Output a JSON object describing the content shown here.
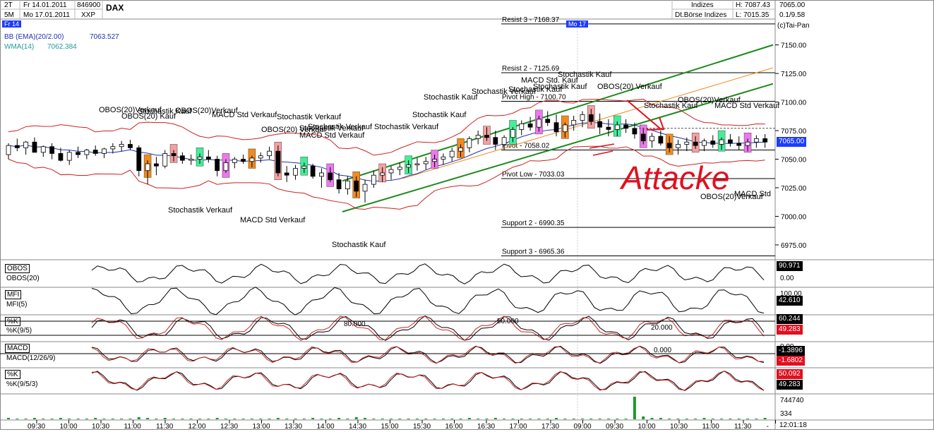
{
  "header": {
    "period_1": "2T",
    "date_1": "Fr 14.01.2011",
    "period_2": "5M",
    "date_2": "Mo 17.01.2011",
    "code": "846900",
    "exchange": "XXP",
    "symbol": "DAX",
    "market_1": "Indizes",
    "market_2": "Dt.Börse Indizes",
    "high_label": "H: 7087.43",
    "low_label": "L: 7015.35",
    "last_value": "7065.00",
    "change": "0.1/9.58",
    "copyright": "(c)Tai-Pan"
  },
  "indicators": {
    "day_flag": "Fr 14",
    "bb_label": "BB (EMA)(20/2.00)",
    "bb_value": "7063.527",
    "wma_label": "WMA(14)",
    "wma_value": "7062.384",
    "day_flag_2": "Mo 17"
  },
  "levels": [
    {
      "label": "Resist 3 - 7168.37",
      "value": 7168.37
    },
    {
      "label": "Resist 2 - 7125.69",
      "value": 7125.69
    },
    {
      "label": "Pivot High - 7100.70",
      "value": 7100.7
    },
    {
      "label": "Pivot - 7058.02",
      "value": 7058.02
    },
    {
      "label": "Pivot Low - 7033.03",
      "value": 7033.03
    },
    {
      "label": "Support 2 - 6990.35",
      "value": 6990.35
    },
    {
      "label": "Support 3 - 6965.36",
      "value": 6965.36
    }
  ],
  "signals": [
    "OBOS(20)Verkauf",
    "OBOS(20) Kauf",
    "OBOS(20)Verkauf",
    "Stochastik Kauf",
    "MACD Std Verkauf",
    "OBOS(20) Verkauf",
    "Stochastik Verkauf",
    "MACD Std Verkauf",
    "Stochastik Verkauf",
    "Stochastik Verkauf",
    "Stochastik Kauf",
    "Stochastik Verkauf",
    "Stochastik Kauf",
    "Stochastik Kauf",
    "Stochastik Verkauf",
    "MACD Std. Kauf",
    "Stochastik Kauf",
    "Stochastik Kauf",
    "OBOS(20) Verkauf",
    "Stochastik Kauf",
    "OBOS(20)Verkauf",
    "MACD Std Verkauf",
    "OBOS(20)Verkauf",
    "MACD Std",
    "Stochastik Verkauf",
    "MACD Std Verkauf",
    "Stochastik Kauf"
  ],
  "handwriting": "Attacke",
  "panels": {
    "obos": {
      "tag": "OBOS",
      "name": "OBOS(20)",
      "value": "90.971",
      "ticks": [
        "0.00"
      ]
    },
    "mfi": {
      "tag": "MFI",
      "name": "MFI(5)",
      "value": "42.610",
      "ticks": [
        "100.00"
      ]
    },
    "stoch": {
      "tag": "%K",
      "name": "%K(9/5)",
      "value_1": "60.244",
      "value_2": "49.283",
      "levels": [
        "80.000",
        "50.000",
        "20.000"
      ]
    },
    "macd": {
      "tag": "MACD",
      "name": "MACD(12/26/9)",
      "value_1": "-1.3896",
      "value_2": "-1.6802",
      "ticks": [
        "0.00"
      ],
      "zero_label": "0.000"
    },
    "slow": {
      "tag": "%K",
      "name": "%K(9/5/3)",
      "value_1": "50.092",
      "value_2": "49.283"
    },
    "volume": {
      "ticks": [
        "744740",
        "334"
      ]
    }
  },
  "time_axis": [
    "09:30",
    "10:00",
    "10:30",
    "11:00",
    "11:30",
    "12:00",
    "12:30",
    "13:00",
    "13:30",
    "14:00",
    "14:30",
    "15:00",
    "15:30",
    "16:00",
    "16:30",
    "17:00",
    "17:30",
    "09:00",
    "09:30",
    "10:00",
    "10:30",
    "11:00",
    "11:30",
    "-"
  ],
  "clock": "12:01:18",
  "colors": {
    "up_candle": "#ffffff",
    "down_candle": "#000000",
    "channel": "#1a8a1a",
    "bollinger": "#cc2222",
    "wma": "#2233aa",
    "highlight_last": "#1e3cff",
    "orange": "#f28a1e",
    "magenta": "#ee77ee",
    "green_box": "#44ee99",
    "pink_box": "#f5a0a0",
    "handwriting": "#e01020"
  },
  "chart_data": {
    "type": "candlestick",
    "title": "DAX",
    "interval": "5M",
    "y_ticks": [
      6975,
      7000,
      7025,
      7050,
      7075,
      7100,
      7125,
      7150
    ],
    "ylim": [
      6962,
      7172
    ],
    "ohlc": [
      [
        7054,
        7064,
        7050,
        7062
      ],
      [
        7062,
        7068,
        7057,
        7060
      ],
      [
        7060,
        7066,
        7054,
        7065
      ],
      [
        7065,
        7069,
        7058,
        7056
      ],
      [
        7056,
        7062,
        7052,
        7061
      ],
      [
        7061,
        7064,
        7050,
        7055
      ],
      [
        7055,
        7060,
        7048,
        7049
      ],
      [
        7049,
        7058,
        7045,
        7056
      ],
      [
        7056,
        7061,
        7051,
        7054
      ],
      [
        7054,
        7059,
        7050,
        7058
      ],
      [
        7058,
        7062,
        7053,
        7055
      ],
      [
        7055,
        7060,
        7051,
        7059
      ],
      [
        7059,
        7064,
        7055,
        7061
      ],
      [
        7061,
        7066,
        7057,
        7063
      ],
      [
        7063,
        7067,
        7058,
        7060
      ],
      [
        7060,
        7062,
        7035,
        7040
      ],
      [
        7040,
        7049,
        7028,
        7046
      ],
      [
        7046,
        7052,
        7036,
        7044
      ],
      [
        7044,
        7058,
        7042,
        7055
      ],
      [
        7055,
        7058,
        7048,
        7053
      ],
      [
        7053,
        7056,
        7046,
        7049
      ],
      [
        7049,
        7054,
        7045,
        7050
      ],
      [
        7050,
        7055,
        7046,
        7052
      ],
      [
        7052,
        7058,
        7047,
        7050
      ],
      [
        7050,
        7053,
        7035,
        7040
      ],
      [
        7040,
        7050,
        7038,
        7047
      ],
      [
        7047,
        7052,
        7042,
        7050
      ],
      [
        7050,
        7054,
        7046,
        7048
      ],
      [
        7048,
        7053,
        7043,
        7051
      ],
      [
        7051,
        7056,
        7047,
        7053
      ],
      [
        7053,
        7061,
        7050,
        7057
      ],
      [
        7057,
        7062,
        7035,
        7038
      ],
      [
        7038,
        7044,
        7030,
        7036
      ],
      [
        7036,
        7045,
        7032,
        7042
      ],
      [
        7042,
        7047,
        7038,
        7044
      ],
      [
        7044,
        7046,
        7033,
        7035
      ],
      [
        7035,
        7042,
        7025,
        7038
      ],
      [
        7038,
        7043,
        7030,
        7032
      ],
      [
        7032,
        7038,
        7020,
        7024
      ],
      [
        7024,
        7035,
        7019,
        7031
      ],
      [
        7031,
        7035,
        7017,
        7022
      ],
      [
        7022,
        7032,
        7012,
        7028
      ],
      [
        7028,
        7040,
        7025,
        7036
      ],
      [
        7036,
        7043,
        7030,
        7038
      ],
      [
        7038,
        7044,
        7032,
        7041
      ],
      [
        7041,
        7047,
        7036,
        7043
      ],
      [
        7043,
        7049,
        7038,
        7045
      ],
      [
        7045,
        7051,
        7040,
        7046
      ],
      [
        7046,
        7052,
        7041,
        7048
      ],
      [
        7048,
        7054,
        7043,
        7050
      ],
      [
        7050,
        7055,
        7045,
        7052
      ],
      [
        7052,
        7060,
        7048,
        7057
      ],
      [
        7057,
        7063,
        7052,
        7060
      ],
      [
        7060,
        7070,
        7056,
        7068
      ],
      [
        7068,
        7075,
        7063,
        7071
      ],
      [
        7071,
        7078,
        7066,
        7069
      ],
      [
        7069,
        7075,
        7058,
        7063
      ],
      [
        7063,
        7071,
        7058,
        7069
      ],
      [
        7069,
        7078,
        7065,
        7076
      ],
      [
        7076,
        7084,
        7071,
        7081
      ],
      [
        7081,
        7087,
        7075,
        7078
      ],
      [
        7078,
        7088,
        7074,
        7085
      ],
      [
        7085,
        7092,
        7079,
        7082
      ],
      [
        7082,
        7089,
        7070,
        7074
      ],
      [
        7074,
        7082,
        7069,
        7080
      ],
      [
        7080,
        7088,
        7075,
        7084
      ],
      [
        7084,
        7092,
        7078,
        7089
      ],
      [
        7089,
        7094,
        7080,
        7083
      ],
      [
        7083,
        7090,
        7072,
        7078
      ],
      [
        7078,
        7085,
        7070,
        7076
      ],
      [
        7076,
        7083,
        7070,
        7080
      ],
      [
        7080,
        7085,
        7073,
        7077
      ],
      [
        7077,
        7082,
        7068,
        7072
      ],
      [
        7072,
        7077,
        7063,
        7066
      ],
      [
        7066,
        7073,
        7060,
        7070
      ],
      [
        7070,
        7075,
        7062,
        7064
      ],
      [
        7064,
        7070,
        7056,
        7060
      ],
      [
        7060,
        7067,
        7054,
        7063
      ],
      [
        7063,
        7069,
        7057,
        7065
      ],
      [
        7065,
        7070,
        7059,
        7062
      ],
      [
        7062,
        7068,
        7057,
        7066
      ],
      [
        7066,
        7071,
        7060,
        7063
      ],
      [
        7063,
        7069,
        7058,
        7067
      ],
      [
        7067,
        7072,
        7061,
        7064
      ],
      [
        7064,
        7070,
        7058,
        7062
      ],
      [
        7062,
        7068,
        7057,
        7065
      ],
      [
        7065,
        7071,
        7060,
        7068
      ],
      [
        7068,
        7072,
        7060,
        7065
      ]
    ],
    "volume": [
      2,
      1,
      1,
      2,
      1,
      1,
      2,
      1,
      1,
      1,
      2,
      1,
      1,
      1,
      1,
      3,
      2,
      1,
      2,
      1,
      1,
      1,
      1,
      1,
      2,
      1,
      1,
      1,
      1,
      1,
      1,
      2,
      1,
      1,
      1,
      2,
      1,
      1,
      2,
      1,
      3,
      2,
      1,
      1,
      1,
      1,
      1,
      1,
      1,
      1,
      1,
      1,
      1,
      2,
      1,
      1,
      2,
      1,
      1,
      1,
      1,
      1,
      1,
      2,
      1,
      1,
      1,
      1,
      1,
      1,
      1,
      1,
      32,
      4,
      2,
      2,
      1,
      1,
      1,
      1,
      2,
      1,
      1,
      1,
      1,
      1,
      1,
      2
    ]
  }
}
